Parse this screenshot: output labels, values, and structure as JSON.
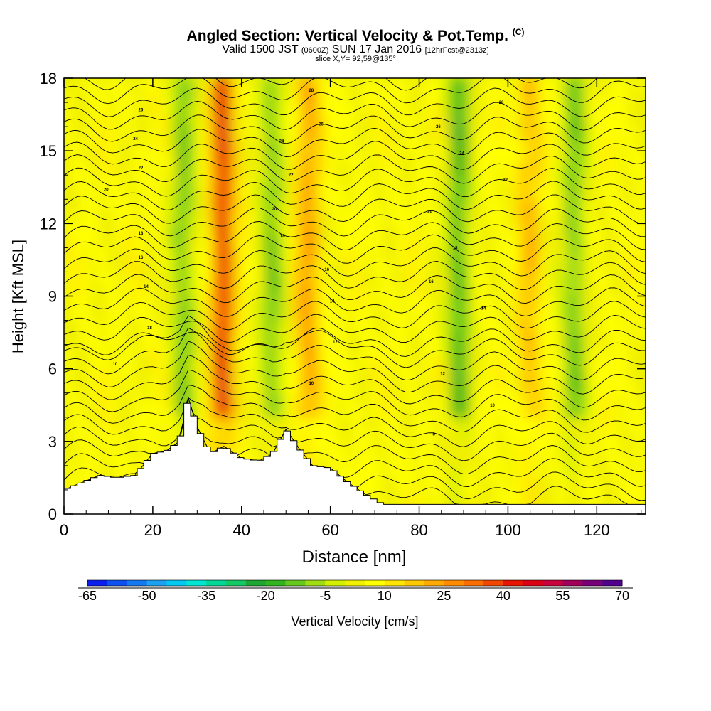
{
  "title": {
    "main": "Angled Section: Vertical Velocity & Pot.Temp.",
    "main_tag": "(C)",
    "valid_a": "Valid 1500 JST",
    "valid_utc": "(0600Z)",
    "valid_b": "SUN 17 Jan 2016",
    "valid_fcst": "[12hrFcst@2313z]",
    "slice": "slice X,Y= 92,59@135°"
  },
  "chart_data": {
    "type": "heatmap",
    "xlabel": "Distance [nm]",
    "ylabel": "Height [Kft MSL]",
    "xlim": [
      0,
      131
    ],
    "ylim": [
      0,
      18
    ],
    "x_ticks": [
      0,
      20,
      40,
      60,
      80,
      100,
      120
    ],
    "x_tick_labels": [
      "0",
      "20",
      "40",
      "60",
      "80",
      "100",
      "120"
    ],
    "y_ticks": [
      0,
      3,
      6,
      9,
      12,
      15,
      18
    ],
    "y_tick_labels": [
      "0",
      "3",
      "6",
      "9",
      "12",
      "15",
      "18"
    ],
    "colorbar": {
      "label": "Vertical Velocity [cm/s]",
      "range": [
        -65,
        70
      ],
      "step": 5,
      "tick_labels": [
        "-65",
        "-50",
        "-35",
        "-20",
        "-5",
        "10",
        "25",
        "40",
        "55",
        "70"
      ],
      "colors": [
        "#0a1ef0",
        "#0d50f0",
        "#1478f0",
        "#1ea0f0",
        "#00c8f0",
        "#00e6d2",
        "#00d696",
        "#14c864",
        "#1ea532",
        "#32b41e",
        "#64c81e",
        "#a0dc14",
        "#d2f000",
        "#f0f000",
        "#ffff00",
        "#ffe600",
        "#ffc800",
        "#ffaa00",
        "#ff8c00",
        "#fa6e00",
        "#f04600",
        "#e61400",
        "#dc0014",
        "#c8003c",
        "#a0005a",
        "#780078",
        "#50008c"
      ]
    },
    "vertical_velocity_features": [
      {
        "x": 36,
        "peak_cms": 40,
        "sign": "updraft"
      },
      {
        "x": 27,
        "peak_cms": -20,
        "sign": "downdraft"
      },
      {
        "x": 47,
        "peak_cms": -20,
        "sign": "downdraft"
      },
      {
        "x": 55,
        "peak_cms": 20,
        "sign": "updraft"
      },
      {
        "x": 89,
        "peak_cms": -25,
        "sign": "downdraft"
      },
      {
        "x": 115,
        "peak_cms": -20,
        "sign": "downdraft"
      },
      {
        "x": 105,
        "peak_cms": 15,
        "sign": "updraft"
      }
    ],
    "terrain_kft": {
      "x": [
        0,
        4,
        8,
        12,
        16,
        20,
        23,
        26,
        28,
        30,
        33,
        36,
        40,
        44,
        47,
        50,
        53,
        56,
        60,
        64,
        68,
        72,
        131
      ],
      "y": [
        1.0,
        1.3,
        1.6,
        1.5,
        1.6,
        2.5,
        2.6,
        3.0,
        4.8,
        3.6,
        2.5,
        2.8,
        2.3,
        2.2,
        2.5,
        3.5,
        2.7,
        2.0,
        1.9,
        1.3,
        0.8,
        0.4,
        0.4
      ]
    },
    "pot_temp_labels": [
      {
        "x": 11.5,
        "y": 6.2,
        "label": "10"
      },
      {
        "x": 19.3,
        "y": 7.7,
        "label": "18"
      },
      {
        "x": 18.5,
        "y": 9.4,
        "label": "14"
      },
      {
        "x": 17.3,
        "y": 10.6,
        "label": "16"
      },
      {
        "x": 17.3,
        "y": 11.6,
        "label": "18"
      },
      {
        "x": 9.5,
        "y": 13.4,
        "label": "20"
      },
      {
        "x": 17.3,
        "y": 14.3,
        "label": "22"
      },
      {
        "x": 16.1,
        "y": 15.5,
        "label": "24"
      },
      {
        "x": 17.3,
        "y": 16.7,
        "label": "26"
      },
      {
        "x": 55.7,
        "y": 5.4,
        "label": "10"
      },
      {
        "x": 61.1,
        "y": 7.1,
        "label": "12"
      },
      {
        "x": 60.4,
        "y": 8.8,
        "label": "14"
      },
      {
        "x": 59.2,
        "y": 10.1,
        "label": "16"
      },
      {
        "x": 49.2,
        "y": 11.5,
        "label": "18"
      },
      {
        "x": 47.4,
        "y": 12.6,
        "label": "20"
      },
      {
        "x": 51.1,
        "y": 14.0,
        "label": "22"
      },
      {
        "x": 49.0,
        "y": 15.4,
        "label": "24"
      },
      {
        "x": 57.9,
        "y": 16.1,
        "label": "26"
      },
      {
        "x": 55.7,
        "y": 17.5,
        "label": "28"
      },
      {
        "x": 83.3,
        "y": 3.3,
        "label": "8"
      },
      {
        "x": 96.5,
        "y": 4.5,
        "label": "10"
      },
      {
        "x": 85.3,
        "y": 5.8,
        "label": "12"
      },
      {
        "x": 94.5,
        "y": 8.5,
        "label": "14"
      },
      {
        "x": 82.7,
        "y": 9.6,
        "label": "16"
      },
      {
        "x": 88.1,
        "y": 11.0,
        "label": "18"
      },
      {
        "x": 82.4,
        "y": 12.5,
        "label": "20"
      },
      {
        "x": 99.4,
        "y": 13.8,
        "label": "22"
      },
      {
        "x": 89.6,
        "y": 14.9,
        "label": "24"
      },
      {
        "x": 84.3,
        "y": 16.0,
        "label": "26"
      },
      {
        "x": 98.5,
        "y": 17.0,
        "label": "28"
      }
    ]
  }
}
